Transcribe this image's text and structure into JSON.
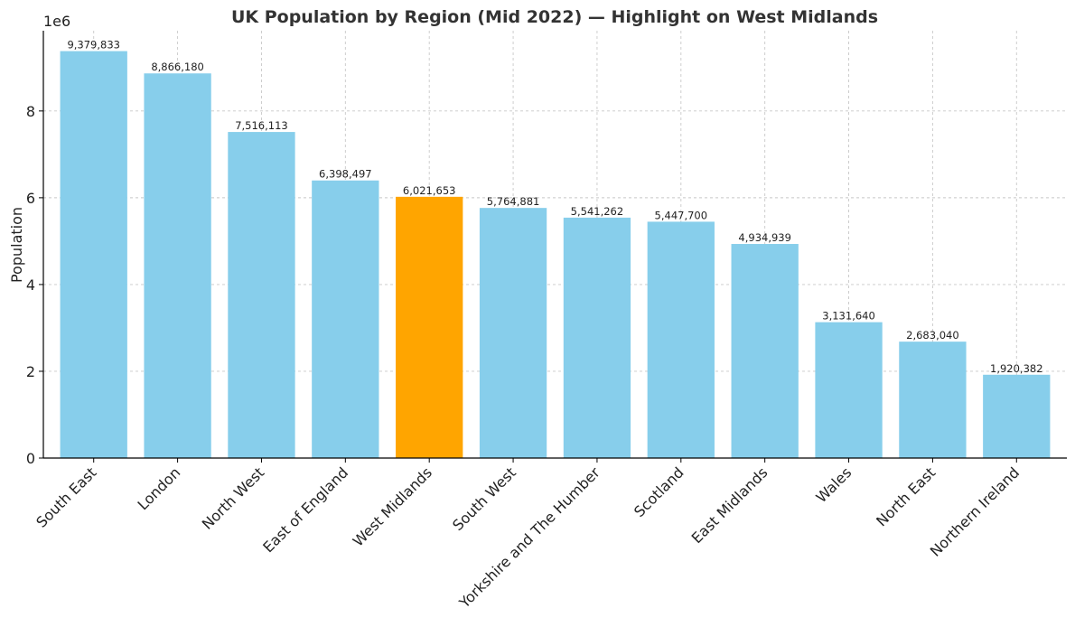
{
  "chart_data": {
    "type": "bar",
    "title": "UK Population by Region (Mid 2022) — Highlight on West Midlands",
    "xlabel": "",
    "ylabel": "Population",
    "y_scale_label": "1e6",
    "y_scale": 1000000,
    "ylim": [
      0,
      9850000
    ],
    "yticks": [
      0,
      2,
      4,
      6,
      8
    ],
    "grid": true,
    "categories": [
      "South East",
      "London",
      "North West",
      "East of England",
      "West Midlands",
      "South West",
      "Yorkshire and The Humber",
      "Scotland",
      "East Midlands",
      "Wales",
      "North East",
      "Northern Ireland"
    ],
    "values": [
      9379833,
      8866180,
      7516113,
      6398497,
      6021653,
      5764881,
      5541262,
      5447700,
      4934939,
      3131640,
      2683040,
      1920382
    ],
    "value_labels": [
      "9,379,833",
      "8,866,180",
      "7,516,113",
      "6,398,497",
      "6,021,653",
      "5,764,881",
      "5,541,262",
      "5,447,700",
      "4,934,939",
      "3,131,640",
      "2,683,040",
      "1,920,382"
    ],
    "highlight": "West Midlands",
    "colors": {
      "bar": "#87CEEB",
      "highlight": "#FFA500",
      "grid": "#c8c8c8",
      "axis": "#000000",
      "text": "#222222"
    }
  }
}
